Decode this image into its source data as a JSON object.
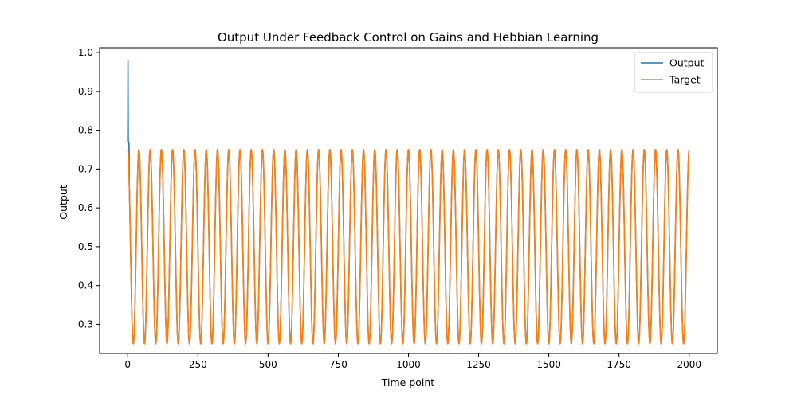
{
  "chart_data": {
    "type": "line",
    "title": "Output Under Feedback Control on Gains and Hebbian Learning",
    "xlabel": "Time point",
    "ylabel": "Output",
    "xlim": [
      -100,
      2100
    ],
    "ylim": [
      0.225,
      1.0125
    ],
    "xticks": [
      0,
      250,
      500,
      750,
      1000,
      1250,
      1500,
      1750,
      2000
    ],
    "yticks": [
      0.3,
      0.4,
      0.5,
      0.6,
      0.7,
      0.8,
      0.9,
      1.0
    ],
    "xtick_labels": [
      "0",
      "250",
      "500",
      "750",
      "1000",
      "1250",
      "1500",
      "1750",
      "2000"
    ],
    "ytick_labels": [
      "0.3",
      "0.4",
      "0.5",
      "0.6",
      "0.7",
      "0.8",
      "0.9",
      "1.0"
    ],
    "grid": false,
    "legend_position": "top-right",
    "series": [
      {
        "name": "Output",
        "color": "#1f77b4",
        "description_form": "sinusoid",
        "initial_points": [
          [
            0,
            0.77
          ],
          [
            1,
            0.98
          ],
          [
            2,
            0.77
          ],
          [
            3,
            0.76
          ],
          [
            4,
            0.77
          ],
          [
            5,
            0.75
          ]
        ],
        "wave": {
          "mean": 0.5,
          "amplitude": 0.25,
          "period": 40,
          "phase_start_value": 0.75,
          "x_start": 0,
          "x_end": 2000
        }
      },
      {
        "name": "Target",
        "color": "#ff7f0e",
        "description_form": "sinusoid",
        "wave": {
          "mean": 0.5,
          "amplitude": 0.25,
          "period": 40,
          "phase_start_value": 0.75,
          "x_start": 0,
          "x_end": 2000
        }
      }
    ]
  }
}
